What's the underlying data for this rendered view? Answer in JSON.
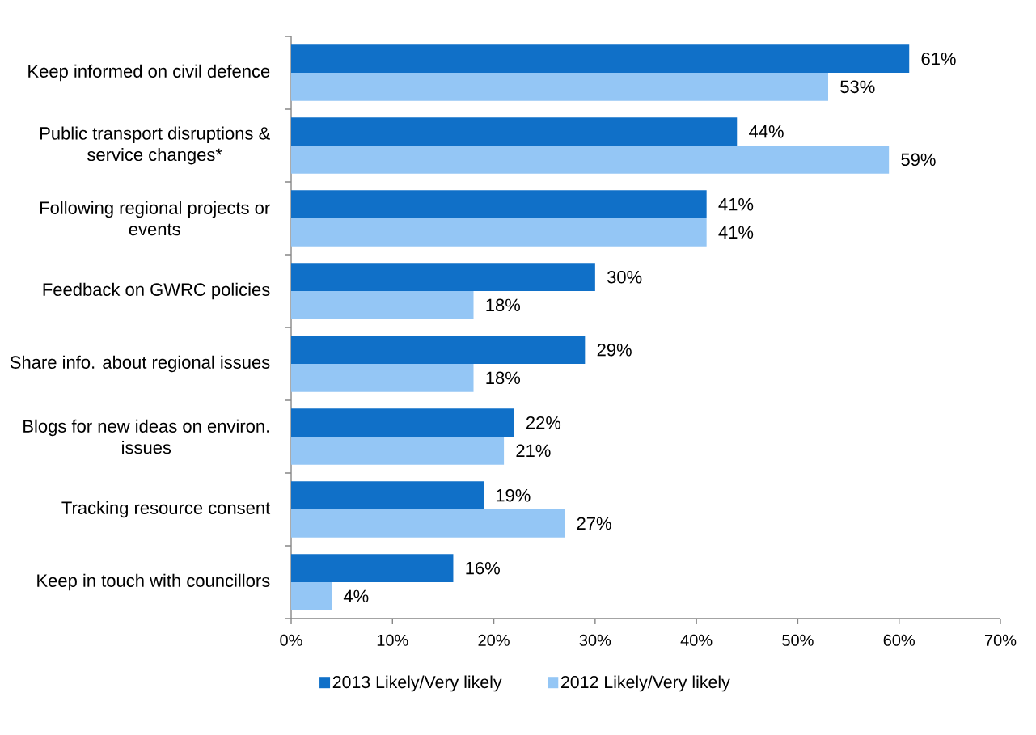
{
  "chart_data": {
    "type": "bar",
    "orientation": "horizontal",
    "categories": [
      "Keep informed on civil defence",
      "Public transport disruptions & service changes*",
      "Following regional projects or events",
      "Feedback on GWRC policies",
      "Share info. about regional issues",
      "Blogs for new ideas on environ. issues",
      "Tracking resource consent",
      "Keep in touch with councillors"
    ],
    "series": [
      {
        "name": "2013 Likely/Very likely",
        "color": "#1070c8",
        "values": [
          61,
          44,
          41,
          30,
          29,
          22,
          19,
          16
        ],
        "value_labels": [
          "61%",
          "44%",
          "41%",
          "30%",
          "29%",
          "22%",
          "19%",
          "16%"
        ]
      },
      {
        "name": "2012 Likely/Very likely",
        "color": "#94c6f5",
        "values": [
          53,
          59,
          41,
          18,
          18,
          21,
          27,
          4
        ],
        "value_labels": [
          "53%",
          "59%",
          "41%",
          "18%",
          "18%",
          "21%",
          "27%",
          "4%"
        ]
      }
    ],
    "xlim": [
      0,
      70
    ],
    "xticks": [
      {
        "value": 0,
        "label": "0%"
      },
      {
        "value": 10,
        "label": "10%"
      },
      {
        "value": 20,
        "label": "20%"
      },
      {
        "value": 30,
        "label": "30%"
      },
      {
        "value": 40,
        "label": "40%"
      },
      {
        "value": 50,
        "label": "50%"
      },
      {
        "value": 60,
        "label": "60%"
      },
      {
        "value": 70,
        "label": "70%"
      }
    ],
    "legend": "bottom"
  }
}
